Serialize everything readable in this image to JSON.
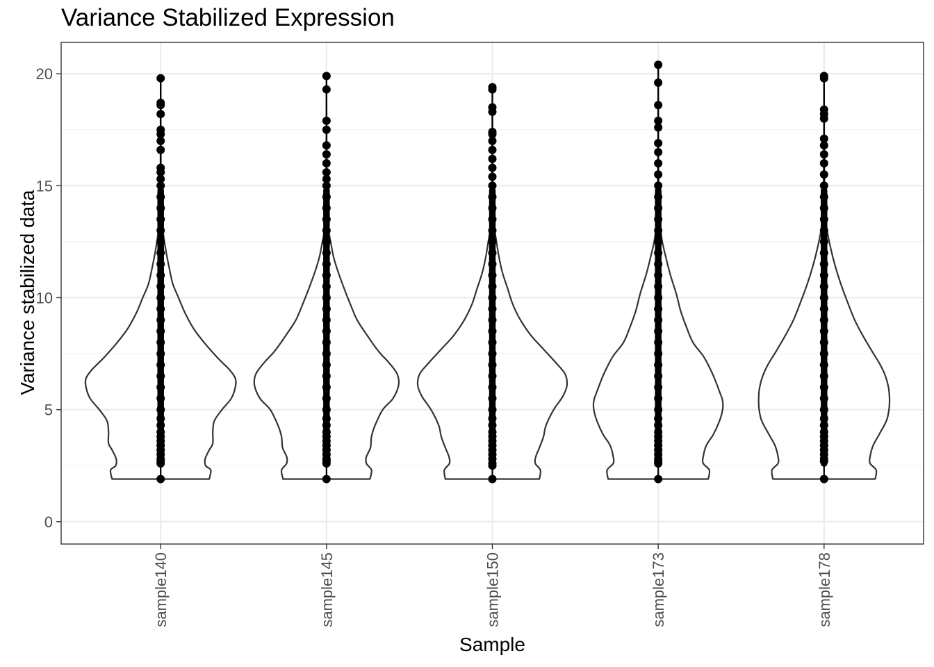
{
  "chart_data": {
    "type": "violin",
    "title": "Variance Stabilized Expression",
    "xlabel": "Sample",
    "ylabel": "Variance stabilized data",
    "categories": [
      "sample140",
      "sample145",
      "sample150",
      "sample173",
      "sample178"
    ],
    "ylim": [
      -1,
      21.4
    ],
    "yticks": [
      0,
      5,
      10,
      15,
      20
    ],
    "grid": true,
    "min_value": 1.9,
    "series": [
      {
        "name": "sample140",
        "max": 19.8,
        "points": [
          1.9,
          2.6,
          2.7,
          2.8,
          3.0,
          3.2,
          3.4,
          3.6,
          3.8,
          4.0,
          4.3,
          4.6,
          5.0,
          5.5,
          6.0,
          6.5,
          7.0,
          7.5,
          8.0,
          8.5,
          9.0,
          9.5,
          10.0,
          10.5,
          11.0,
          11.5,
          12.0,
          12.5,
          13.0,
          13.5,
          14.0,
          14.5,
          15.0,
          15.3,
          15.6,
          15.8,
          16.6,
          17.0,
          17.3,
          17.5,
          18.2,
          18.6,
          18.7,
          19.8
        ],
        "density": [
          [
            1.9,
            0.95
          ],
          [
            2.3,
            0.98
          ],
          [
            2.5,
            0.88
          ],
          [
            2.8,
            0.87
          ],
          [
            3.2,
            0.95
          ],
          [
            3.5,
            1.02
          ],
          [
            4.0,
            1.02
          ],
          [
            4.5,
            1.05
          ],
          [
            5.0,
            1.2
          ],
          [
            5.5,
            1.38
          ],
          [
            6.0,
            1.46
          ],
          [
            6.4,
            1.46
          ],
          [
            6.8,
            1.34
          ],
          [
            7.3,
            1.12
          ],
          [
            8.0,
            0.85
          ],
          [
            8.6,
            0.65
          ],
          [
            9.3,
            0.48
          ],
          [
            10.0,
            0.35
          ],
          [
            10.6,
            0.24
          ],
          [
            11.3,
            0.17
          ],
          [
            12.0,
            0.11
          ],
          [
            12.7,
            0.06
          ],
          [
            13.3,
            0.03
          ],
          [
            14.0,
            0.015
          ],
          [
            15.0,
            0.008
          ],
          [
            16.0,
            0.004
          ],
          [
            18.0,
            0.002
          ],
          [
            19.8,
            0.0
          ]
        ]
      },
      {
        "name": "sample145",
        "max": 19.9,
        "points": [
          1.9,
          2.6,
          2.7,
          2.8,
          3.0,
          3.2,
          3.4,
          3.6,
          3.8,
          4.0,
          4.3,
          4.6,
          5.0,
          5.5,
          6.0,
          6.5,
          7.0,
          7.5,
          8.0,
          8.5,
          9.0,
          9.5,
          10.0,
          10.5,
          11.0,
          11.5,
          12.0,
          12.5,
          13.0,
          13.5,
          14.0,
          14.5,
          15.0,
          15.3,
          15.6,
          16.0,
          16.4,
          16.8,
          17.5,
          17.9,
          19.3,
          19.9
        ],
        "density": [
          [
            1.9,
            0.85
          ],
          [
            2.3,
            0.88
          ],
          [
            2.6,
            0.78
          ],
          [
            2.9,
            0.78
          ],
          [
            3.3,
            0.86
          ],
          [
            3.8,
            0.88
          ],
          [
            4.3,
            0.95
          ],
          [
            5.0,
            1.1
          ],
          [
            5.5,
            1.3
          ],
          [
            6.1,
            1.41
          ],
          [
            6.6,
            1.38
          ],
          [
            7.1,
            1.22
          ],
          [
            7.6,
            1.02
          ],
          [
            8.3,
            0.8
          ],
          [
            9.0,
            0.6
          ],
          [
            9.8,
            0.45
          ],
          [
            10.5,
            0.33
          ],
          [
            11.2,
            0.22
          ],
          [
            11.8,
            0.14
          ],
          [
            12.5,
            0.08
          ],
          [
            13.0,
            0.04
          ],
          [
            13.5,
            0.02
          ],
          [
            14.5,
            0.008
          ],
          [
            16.0,
            0.004
          ],
          [
            18.0,
            0.002
          ],
          [
            19.9,
            0.0
          ]
        ]
      },
      {
        "name": "sample150",
        "max": 19.4,
        "points": [
          1.9,
          2.5,
          2.6,
          2.8,
          3.0,
          3.2,
          3.4,
          3.6,
          3.8,
          4.0,
          4.3,
          4.6,
          5.0,
          5.5,
          6.0,
          6.5,
          7.0,
          7.5,
          8.0,
          8.5,
          9.0,
          9.5,
          10.0,
          10.5,
          11.0,
          11.5,
          12.0,
          12.5,
          13.0,
          13.5,
          14.0,
          14.5,
          15.0,
          15.4,
          15.8,
          16.2,
          16.6,
          17.0,
          17.3,
          17.4,
          18.3,
          18.5,
          19.3,
          19.4
        ],
        "density": [
          [
            1.9,
            0.92
          ],
          [
            2.3,
            0.94
          ],
          [
            2.6,
            0.84
          ],
          [
            2.9,
            0.85
          ],
          [
            3.3,
            0.92
          ],
          [
            3.8,
            1.0
          ],
          [
            4.3,
            1.05
          ],
          [
            5.0,
            1.2
          ],
          [
            5.6,
            1.38
          ],
          [
            6.1,
            1.46
          ],
          [
            6.6,
            1.42
          ],
          [
            7.1,
            1.24
          ],
          [
            7.7,
            1.0
          ],
          [
            8.3,
            0.76
          ],
          [
            9.0,
            0.55
          ],
          [
            9.7,
            0.4
          ],
          [
            10.4,
            0.3
          ],
          [
            11.1,
            0.2
          ],
          [
            11.8,
            0.13
          ],
          [
            12.5,
            0.08
          ],
          [
            13.1,
            0.04
          ],
          [
            13.6,
            0.02
          ],
          [
            14.5,
            0.008
          ],
          [
            16.0,
            0.004
          ],
          [
            18.0,
            0.002
          ],
          [
            19.4,
            0.0
          ]
        ]
      },
      {
        "name": "sample173",
        "max": 20.4,
        "points": [
          1.9,
          2.6,
          2.7,
          2.8,
          3.0,
          3.2,
          3.4,
          3.6,
          3.8,
          4.0,
          4.3,
          4.6,
          5.0,
          5.5,
          6.0,
          6.5,
          7.0,
          7.5,
          8.0,
          8.5,
          9.0,
          9.5,
          10.0,
          10.5,
          11.0,
          11.5,
          12.0,
          12.5,
          13.0,
          13.5,
          14.0,
          14.5,
          15.0,
          15.5,
          16.0,
          16.5,
          16.9,
          17.6,
          17.9,
          18.6,
          19.6,
          20.4
        ],
        "density": [
          [
            1.9,
            0.98
          ],
          [
            2.3,
            1.0
          ],
          [
            2.6,
            0.88
          ],
          [
            2.9,
            0.88
          ],
          [
            3.4,
            0.94
          ],
          [
            3.9,
            1.08
          ],
          [
            4.5,
            1.2
          ],
          [
            5.0,
            1.26
          ],
          [
            5.4,
            1.26
          ],
          [
            5.8,
            1.2
          ],
          [
            6.4,
            1.1
          ],
          [
            6.9,
            1.0
          ],
          [
            7.4,
            0.88
          ],
          [
            8.0,
            0.68
          ],
          [
            8.7,
            0.55
          ],
          [
            9.4,
            0.44
          ],
          [
            10.2,
            0.35
          ],
          [
            11.0,
            0.24
          ],
          [
            11.8,
            0.15
          ],
          [
            12.5,
            0.08
          ],
          [
            13.2,
            0.04
          ],
          [
            13.8,
            0.02
          ],
          [
            14.5,
            0.01
          ],
          [
            16.0,
            0.004
          ],
          [
            18.0,
            0.002
          ],
          [
            20.4,
            0.0
          ]
        ]
      },
      {
        "name": "sample178",
        "max": 19.9,
        "points": [
          1.9,
          2.7,
          2.8,
          3.0,
          3.2,
          3.4,
          3.6,
          3.8,
          4.0,
          4.3,
          4.6,
          5.0,
          5.5,
          6.0,
          6.5,
          7.0,
          7.5,
          8.0,
          8.5,
          9.0,
          9.5,
          10.0,
          10.5,
          11.0,
          11.5,
          12.0,
          12.5,
          13.0,
          13.5,
          14.0,
          14.5,
          15.0,
          15.5,
          16.0,
          16.4,
          16.8,
          17.1,
          18.0,
          18.2,
          18.4,
          19.8,
          19.9
        ],
        "density": [
          [
            1.9,
            1.0
          ],
          [
            2.3,
            1.02
          ],
          [
            2.6,
            0.9
          ],
          [
            2.9,
            0.9
          ],
          [
            3.4,
            0.96
          ],
          [
            3.9,
            1.08
          ],
          [
            4.5,
            1.22
          ],
          [
            5.0,
            1.27
          ],
          [
            5.5,
            1.28
          ],
          [
            6.0,
            1.26
          ],
          [
            6.5,
            1.2
          ],
          [
            7.0,
            1.1
          ],
          [
            7.6,
            0.94
          ],
          [
            8.3,
            0.76
          ],
          [
            9.0,
            0.6
          ],
          [
            9.8,
            0.46
          ],
          [
            10.6,
            0.33
          ],
          [
            11.4,
            0.22
          ],
          [
            12.2,
            0.13
          ],
          [
            13.0,
            0.06
          ],
          [
            13.6,
            0.03
          ],
          [
            14.5,
            0.012
          ],
          [
            16.0,
            0.005
          ],
          [
            18.0,
            0.002
          ],
          [
            19.9,
            0.0
          ]
        ]
      }
    ]
  },
  "colors": {
    "panel_border": "#333333",
    "grid_major": "#ebebeb",
    "grid_minor": "#f2f2f2",
    "violin_stroke": "#333333",
    "points": "#000000",
    "tick_text": "#4d4d4d",
    "title_text": "#000000"
  }
}
